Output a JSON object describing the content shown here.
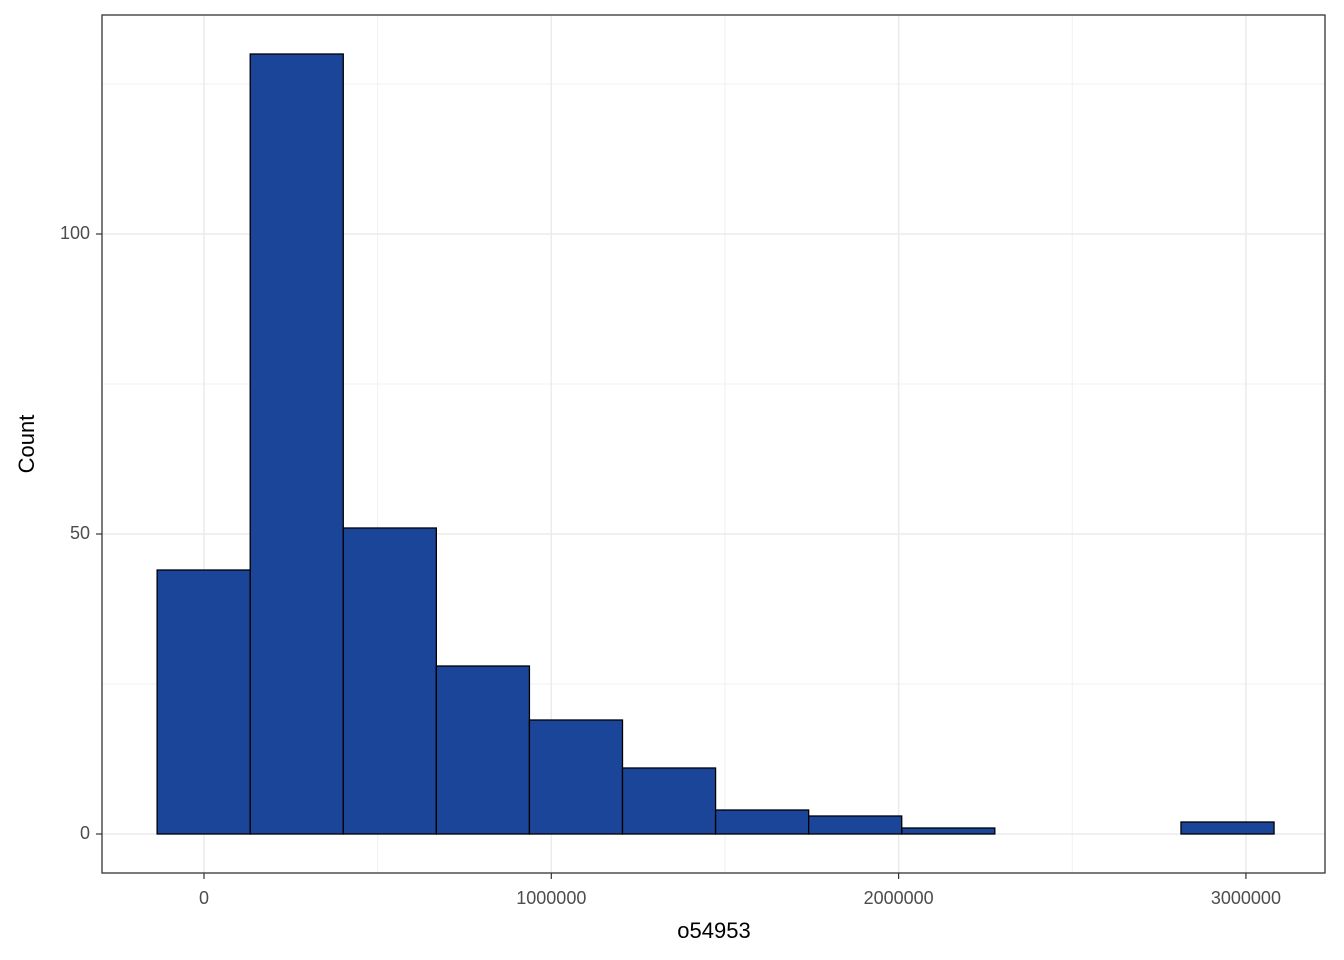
{
  "chart_data": {
    "type": "histogram",
    "x_label": "o54953",
    "y_label": "Count",
    "bins": [
      -135000,
      133000,
      401000,
      669000,
      937000,
      1205000,
      1473000,
      1741000,
      2009000,
      2277000,
      2545000,
      2813000,
      3081000
    ],
    "counts": [
      44,
      130,
      51,
      28,
      19,
      11,
      4,
      3,
      1,
      0,
      0,
      2
    ],
    "color": "#1a4599",
    "edge_color": "#000000",
    "xlim": [
      -293700,
      3227700
    ],
    "ylim": [
      -6.5,
      136.5
    ],
    "xticks": [
      0,
      1000000,
      2000000,
      3000000
    ],
    "yticks": [
      0,
      50,
      100
    ],
    "x_minor_ticks": [
      500000,
      1500000,
      2500000
    ],
    "y_minor_ticks": [
      25,
      75,
      125
    ],
    "grid": true
  }
}
